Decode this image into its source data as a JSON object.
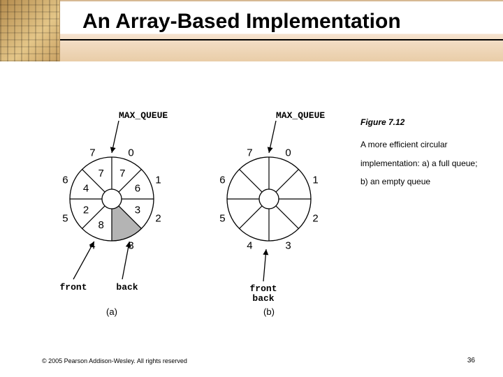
{
  "title": "An Array-Based Implementation",
  "caption": {
    "figlabel": "Figure 7.12",
    "text": "A more efficient circular implementation: a) a full queue; b) an empty queue"
  },
  "copyright": "© 2005 Pearson Addison-Wesley. All rights reserved",
  "pagenum": "36",
  "mq_label": "MAX_QUEUE",
  "front_label": "front",
  "back_label": "back",
  "sub_a": "(a)",
  "sub_b": "(b)",
  "diagram": {
    "type": "circular-array",
    "sectors": 8,
    "outer_r": 60,
    "inner_r": 14,
    "index_r": 72,
    "value_r": 40,
    "colors": {
      "bg": "#ffffff",
      "line": "#000000",
      "shade": "#b4b4b4",
      "text": "#000000"
    },
    "panels": [
      {
        "id": "a",
        "indices": [
          "0",
          "1",
          "2",
          "3",
          "4",
          "5",
          "6",
          "7"
        ],
        "values": [
          "7",
          "6",
          "3",
          "",
          "8",
          "2",
          "4",
          "7"
        ],
        "shaded": [
          false,
          false,
          false,
          true,
          false,
          false,
          false,
          false
        ],
        "mq_arrow_between": [
          7,
          0
        ],
        "front_idx": 4,
        "back_idx": 3,
        "count_text": ""
      },
      {
        "id": "b",
        "indices": [
          "0",
          "1",
          "2",
          "3",
          "4",
          "5",
          "6",
          "7"
        ],
        "values": [
          "",
          "",
          "",
          "",
          "",
          "",
          "",
          ""
        ],
        "shaded": [
          false,
          false,
          false,
          false,
          false,
          false,
          false,
          false
        ],
        "mq_arrow_between": [
          7,
          0
        ],
        "front_idx": 4,
        "back_idx": 3,
        "front_back_same": true,
        "count_text": ""
      }
    ]
  }
}
